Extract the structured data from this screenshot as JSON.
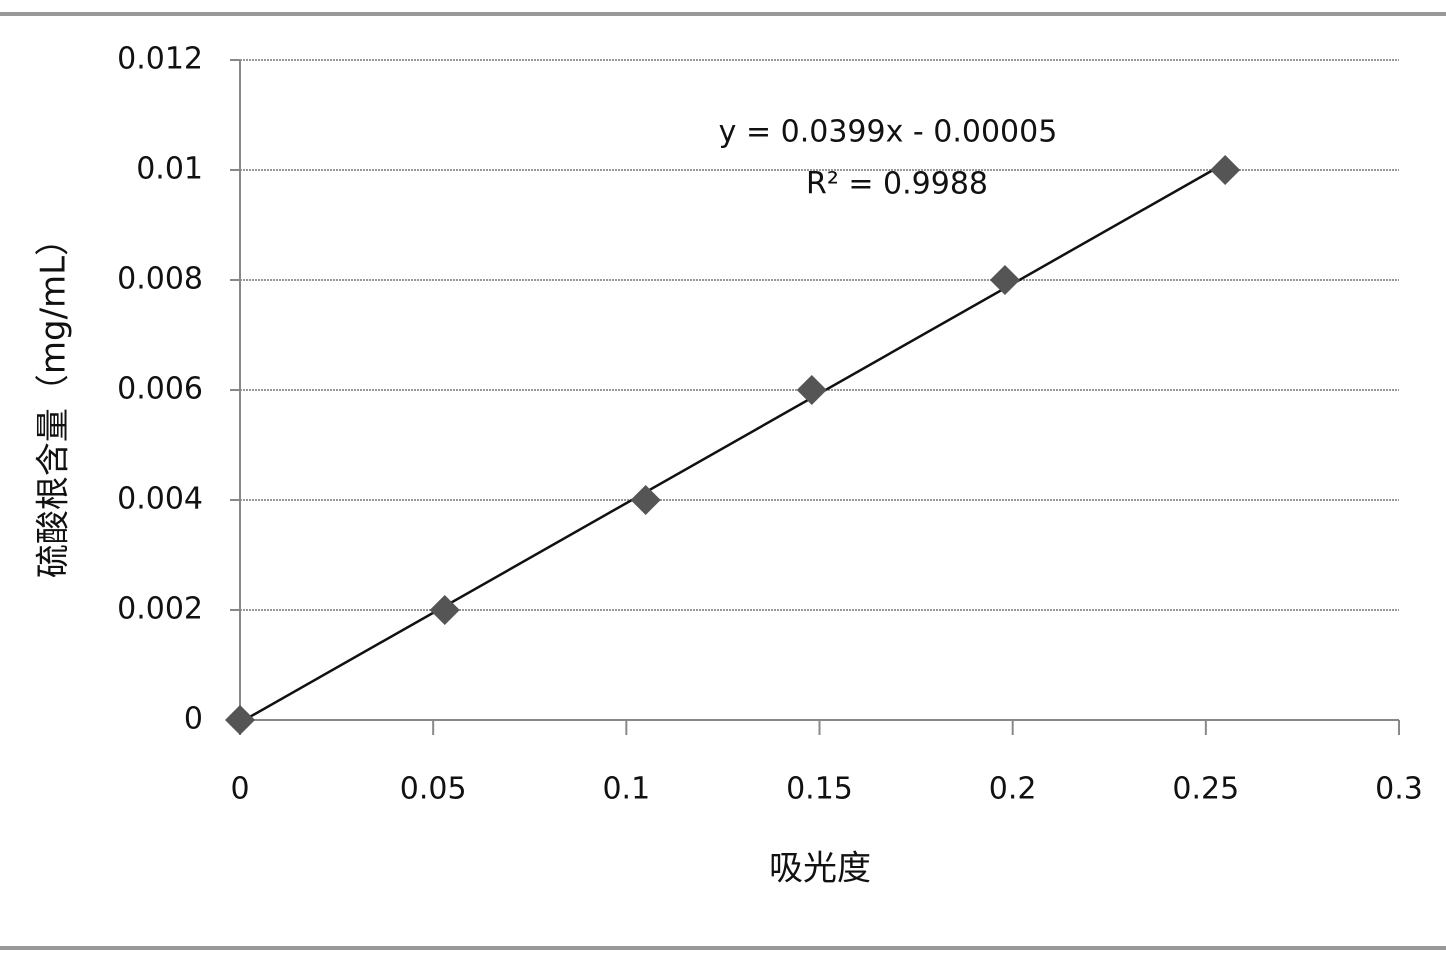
{
  "chart_data": {
    "type": "scatter",
    "x_label": "吸光度",
    "y_label": "硫酸根含量（mg/mL）",
    "annotations": [
      "y = 0.0399x - 0.00005",
      "R² = 0.9988"
    ],
    "x": [
      0,
      0.053,
      0.105,
      0.148,
      0.198,
      0.255
    ],
    "values": [
      0,
      0.002,
      0.004,
      0.006,
      0.008,
      0.01
    ],
    "color": "#555555",
    "trendline": "linear",
    "xlim": [
      0,
      0.3
    ],
    "xticks": [
      0,
      0.05,
      0.1,
      0.15,
      0.2,
      0.25,
      0.3
    ],
    "ylim": [
      0,
      0.012
    ],
    "yticks": [
      0,
      0.002,
      0.004,
      0.006,
      0.008,
      0.01,
      0.012
    ],
    "grid": true
  }
}
